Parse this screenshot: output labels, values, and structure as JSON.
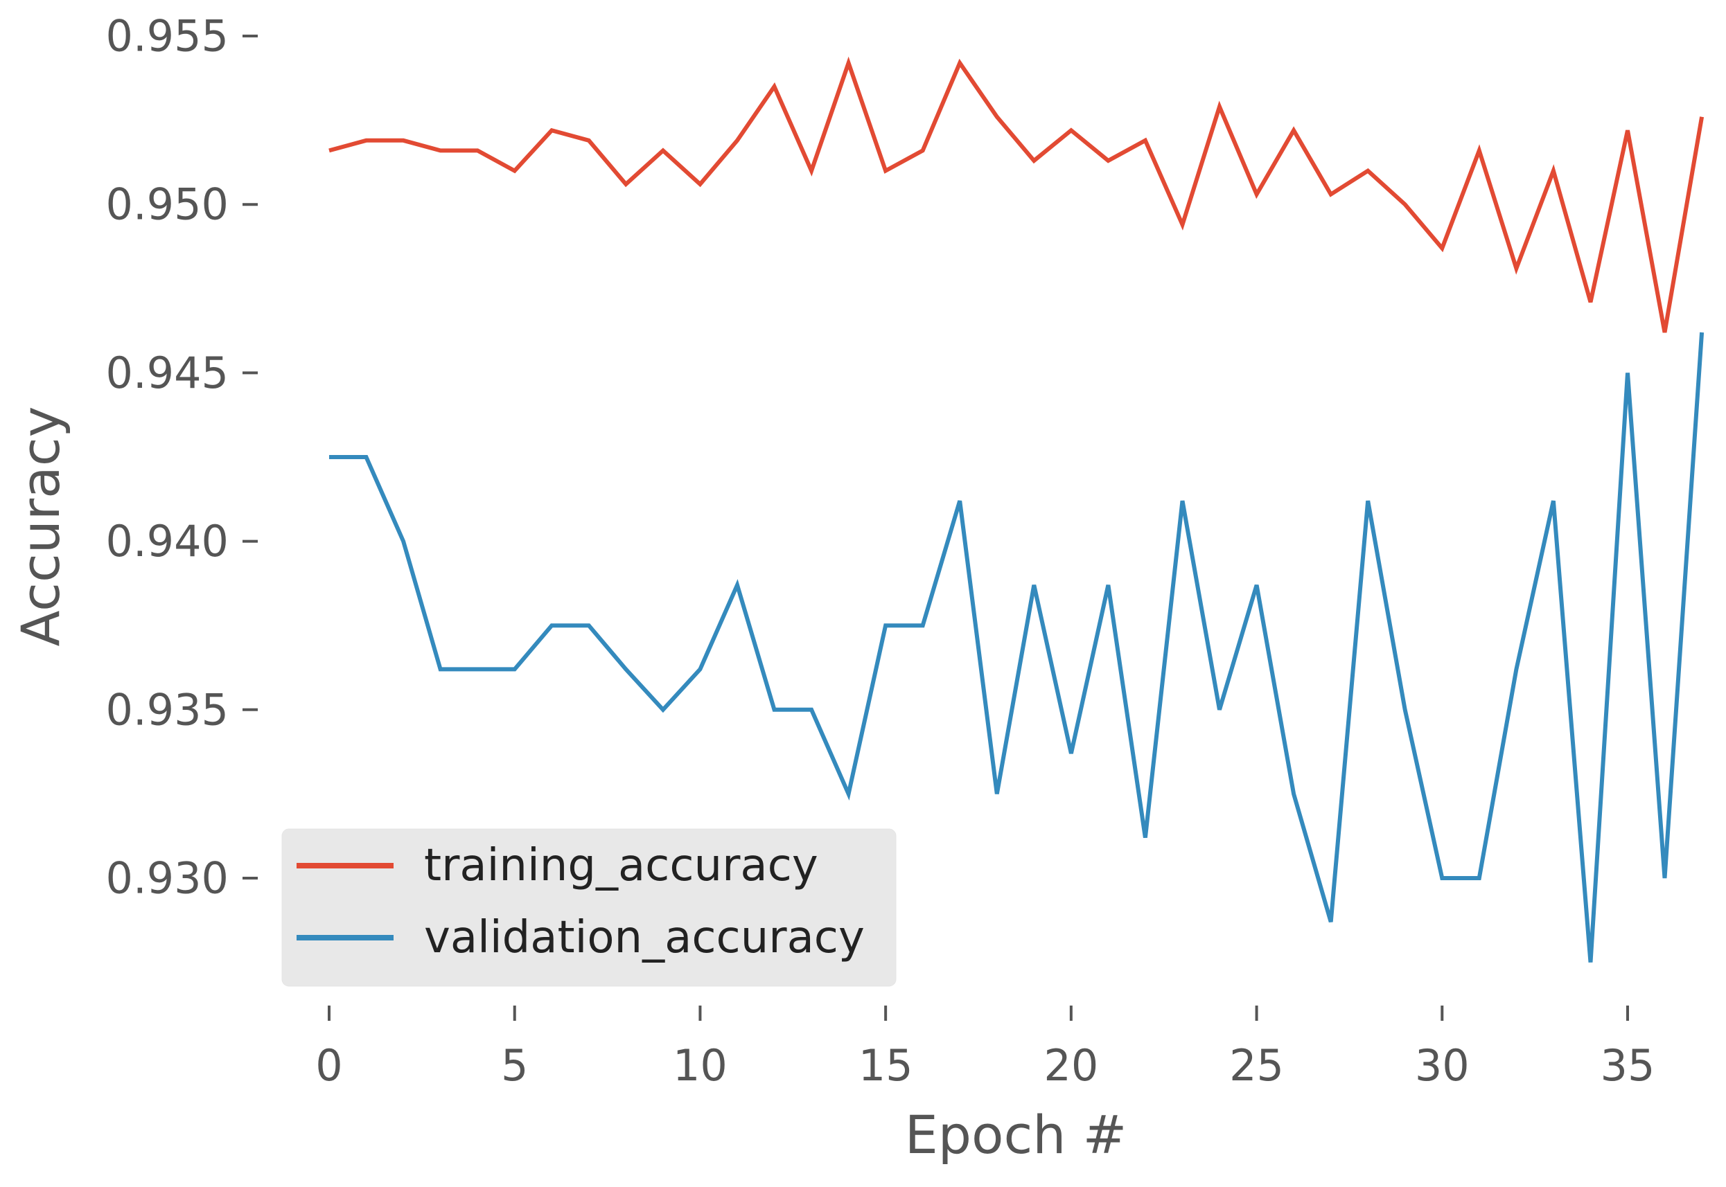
{
  "chart_data": {
    "type": "line",
    "title": "",
    "xlabel": "Epoch #",
    "ylabel": "Accuracy",
    "xlim": [
      -0.5,
      37.5
    ],
    "ylim": [
      0.9263,
      0.9556
    ],
    "xticks": [
      0,
      5,
      10,
      15,
      20,
      25,
      30,
      35
    ],
    "xtick_labels": [
      "0",
      "5",
      "10",
      "15",
      "20",
      "25",
      "30",
      "35"
    ],
    "yticks": [
      0.93,
      0.935,
      0.94,
      0.945,
      0.95,
      0.955
    ],
    "ytick_labels": [
      "0.930",
      "0.935",
      "0.940",
      "0.945",
      "0.950",
      "0.955"
    ],
    "grid": false,
    "legend_position": "lower-left",
    "x": [
      0,
      1,
      2,
      3,
      4,
      5,
      6,
      7,
      8,
      9,
      10,
      11,
      12,
      13,
      14,
      15,
      16,
      17,
      18,
      19,
      20,
      21,
      22,
      23,
      24,
      25,
      26,
      27,
      28,
      29,
      30,
      31,
      32,
      33,
      34,
      35,
      36,
      37
    ],
    "series": [
      {
        "name": "training_accuracy",
        "color": "#E24A33",
        "values": [
          0.9516,
          0.9519,
          0.9519,
          0.9516,
          0.9516,
          0.951,
          0.9522,
          0.9519,
          0.9506,
          0.9516,
          0.9506,
          0.9519,
          0.9535,
          0.951,
          0.9542,
          0.951,
          0.9516,
          0.9542,
          0.9526,
          0.9513,
          0.9522,
          0.9513,
          0.9519,
          0.9494,
          0.9529,
          0.9503,
          0.9522,
          0.9503,
          0.951,
          0.95,
          0.9487,
          0.9516,
          0.9481,
          0.951,
          0.9471,
          0.9522,
          0.9462,
          0.9526
        ]
      },
      {
        "name": "validation_accuracy",
        "color": "#348ABD",
        "values": [
          0.9425,
          0.9425,
          0.94,
          0.9362,
          0.9362,
          0.9362,
          0.9375,
          0.9375,
          0.9362,
          0.935,
          0.9362,
          0.9387,
          0.935,
          0.935,
          0.9325,
          0.9375,
          0.9375,
          0.9412,
          0.9325,
          0.9387,
          0.9337,
          0.9387,
          0.9312,
          0.9412,
          0.935,
          0.9387,
          0.9325,
          0.9287,
          0.9412,
          0.935,
          0.93,
          0.93,
          0.9362,
          0.9412,
          0.9275,
          0.945,
          0.93,
          0.9462
        ]
      }
    ]
  }
}
